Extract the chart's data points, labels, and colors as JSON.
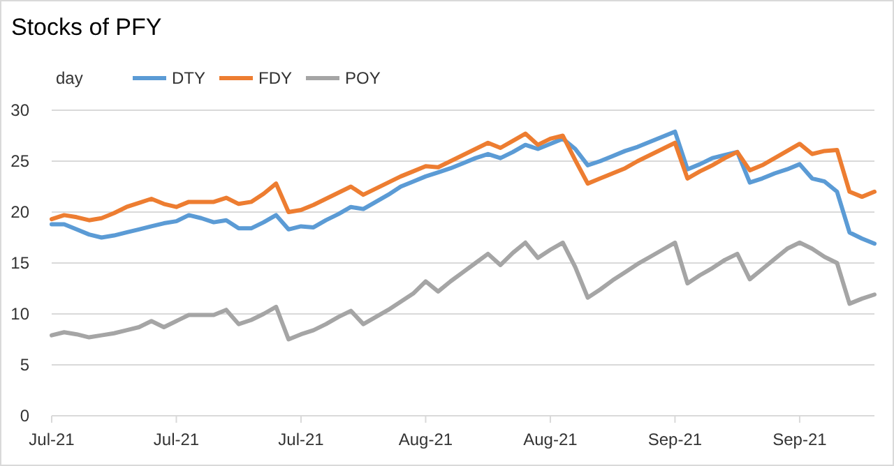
{
  "chart_data": {
    "type": "line",
    "title": "Stocks of PFY",
    "legend_title": "day",
    "legend": "top left",
    "grid": "y",
    "line_style": "solid",
    "marker": "none",
    "categories": [
      "Jul-21",
      null,
      null,
      null,
      null,
      null,
      null,
      null,
      null,
      null,
      "Jul-21",
      null,
      null,
      null,
      null,
      null,
      null,
      null,
      null,
      null,
      "Jul-21",
      null,
      null,
      null,
      null,
      null,
      null,
      null,
      null,
      null,
      "Aug-21",
      null,
      null,
      null,
      null,
      null,
      null,
      null,
      null,
      null,
      "Aug-21",
      null,
      null,
      null,
      null,
      null,
      null,
      null,
      null,
      null,
      "Sep-21",
      null,
      null,
      null,
      null,
      null,
      null,
      null,
      null,
      null,
      "Sep-21",
      null,
      null,
      null,
      null,
      null,
      null
    ],
    "ylim": [
      0,
      30
    ],
    "yticks": [
      0,
      5,
      10,
      15,
      20,
      25,
      30
    ],
    "series": [
      {
        "name": "DTY",
        "color": "#5b9bd5",
        "values": [
          18.8,
          18.8,
          18.3,
          17.8,
          17.5,
          17.7,
          18.0,
          18.3,
          18.6,
          18.9,
          19.1,
          19.7,
          19.4,
          19.0,
          19.2,
          18.4,
          18.4,
          19.0,
          19.7,
          18.3,
          18.6,
          18.5,
          19.2,
          19.8,
          20.5,
          20.3,
          21.0,
          21.7,
          22.5,
          23.0,
          23.5,
          23.9,
          24.3,
          24.8,
          25.3,
          25.7,
          25.3,
          25.9,
          26.6,
          26.2,
          26.7,
          27.2,
          26.2,
          24.6,
          25.0,
          25.5,
          26.0,
          26.4,
          26.9,
          27.4,
          27.9,
          24.2,
          24.7,
          25.3,
          25.6,
          25.9,
          22.9,
          23.3,
          23.8,
          24.2,
          24.7,
          23.3,
          23.0,
          22.0,
          18.0,
          17.4,
          16.9
        ]
      },
      {
        "name": "FDY",
        "color": "#ed7d31",
        "values": [
          19.3,
          19.7,
          19.5,
          19.2,
          19.4,
          19.9,
          20.5,
          20.9,
          21.3,
          20.8,
          20.5,
          21.0,
          21.0,
          21.0,
          21.4,
          20.8,
          21.0,
          21.8,
          22.8,
          20.0,
          20.2,
          20.7,
          21.3,
          21.9,
          22.5,
          21.7,
          22.3,
          22.9,
          23.5,
          24.0,
          24.5,
          24.4,
          25.0,
          25.6,
          26.2,
          26.8,
          26.3,
          27.0,
          27.7,
          26.6,
          27.2,
          27.5,
          25.1,
          22.8,
          23.3,
          23.8,
          24.3,
          25.0,
          25.6,
          26.2,
          26.8,
          23.3,
          24.0,
          24.6,
          25.3,
          25.9,
          24.1,
          24.6,
          25.3,
          26.0,
          26.7,
          25.7,
          26.0,
          26.1,
          22.0,
          21.5,
          22.0
        ]
      },
      {
        "name": "POY",
        "color": "#a5a5a5",
        "values": [
          7.9,
          8.2,
          8.0,
          7.7,
          7.9,
          8.1,
          8.4,
          8.7,
          9.3,
          8.7,
          9.3,
          9.9,
          9.9,
          9.9,
          10.4,
          9.0,
          9.4,
          10.0,
          10.7,
          7.5,
          8.0,
          8.4,
          9.0,
          9.7,
          10.3,
          9.0,
          9.7,
          10.4,
          11.2,
          12.0,
          13.2,
          12.2,
          13.2,
          14.1,
          15.0,
          15.9,
          14.8,
          16.0,
          17.0,
          15.5,
          16.3,
          17.0,
          14.6,
          11.6,
          12.4,
          13.3,
          14.1,
          14.9,
          15.6,
          16.3,
          17.0,
          13.0,
          13.8,
          14.5,
          15.3,
          15.9,
          13.4,
          14.4,
          15.4,
          16.4,
          17.0,
          16.4,
          15.6,
          15.0,
          11.0,
          11.5,
          11.9
        ]
      }
    ]
  }
}
